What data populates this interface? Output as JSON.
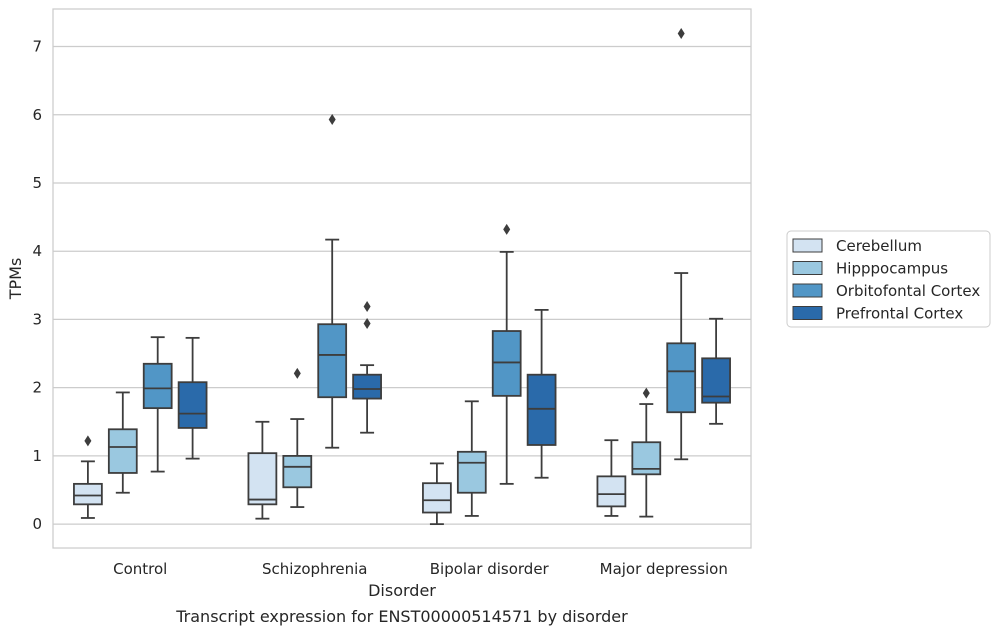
{
  "chart_data": {
    "type": "box",
    "title": "Transcript expression for ENST00000514571 by disorder",
    "xlabel": "Disorder",
    "ylabel": "TPMs",
    "ylim": [
      -0.35,
      7.55
    ],
    "yticks": [
      0,
      1,
      2,
      3,
      4,
      5,
      6,
      7
    ],
    "grid": "horizontal",
    "legend_position": "right",
    "categories": [
      "Control",
      "Schizophrenia",
      "Bipolar disorder",
      "Major depression"
    ],
    "series": [
      {
        "name": "Cerebellum",
        "color": "#d3e3f2",
        "boxes": [
          {
            "whislo": 0.09,
            "q1": 0.29,
            "med": 0.42,
            "q3": 0.59,
            "whishi": 0.92,
            "fliers": [
              1.22
            ]
          },
          {
            "whislo": 0.08,
            "q1": 0.29,
            "med": 0.36,
            "q3": 1.04,
            "whishi": 1.5,
            "fliers": []
          },
          {
            "whislo": 0.0,
            "q1": 0.17,
            "med": 0.35,
            "q3": 0.6,
            "whishi": 0.89,
            "fliers": []
          },
          {
            "whislo": 0.12,
            "q1": 0.26,
            "med": 0.44,
            "q3": 0.7,
            "whishi": 1.23,
            "fliers": []
          }
        ]
      },
      {
        "name": "Hipppocampus",
        "color": "#9ac8e0",
        "boxes": [
          {
            "whislo": 0.46,
            "q1": 0.75,
            "med": 1.13,
            "q3": 1.39,
            "whishi": 1.93,
            "fliers": []
          },
          {
            "whislo": 0.25,
            "q1": 0.54,
            "med": 0.84,
            "q3": 1.0,
            "whishi": 1.54,
            "fliers": [
              2.21
            ]
          },
          {
            "whislo": 0.12,
            "q1": 0.46,
            "med": 0.9,
            "q3": 1.06,
            "whishi": 1.8,
            "fliers": []
          },
          {
            "whislo": 0.11,
            "q1": 0.73,
            "med": 0.81,
            "q3": 1.2,
            "whishi": 1.76,
            "fliers": [
              1.92
            ]
          }
        ]
      },
      {
        "name": "Orbitofontal Cortex",
        "color": "#5196c6",
        "boxes": [
          {
            "whislo": 0.77,
            "q1": 1.7,
            "med": 1.99,
            "q3": 2.35,
            "whishi": 2.74,
            "fliers": []
          },
          {
            "whislo": 1.12,
            "q1": 1.86,
            "med": 2.48,
            "q3": 2.93,
            "whishi": 4.17,
            "fliers": [
              5.93
            ]
          },
          {
            "whislo": 0.59,
            "q1": 1.88,
            "med": 2.37,
            "q3": 2.83,
            "whishi": 3.99,
            "fliers": [
              4.32
            ]
          },
          {
            "whislo": 0.95,
            "q1": 1.64,
            "med": 2.24,
            "q3": 2.65,
            "whishi": 3.68,
            "fliers": [
              7.19
            ]
          }
        ]
      },
      {
        "name": "Prefrontal Cortex",
        "color": "#2a6aaa",
        "boxes": [
          {
            "whislo": 0.96,
            "q1": 1.41,
            "med": 1.62,
            "q3": 2.08,
            "whishi": 2.73,
            "fliers": []
          },
          {
            "whislo": 1.34,
            "q1": 1.84,
            "med": 1.98,
            "q3": 2.19,
            "whishi": 2.33,
            "fliers": [
              2.94,
              3.19
            ]
          },
          {
            "whislo": 0.68,
            "q1": 1.16,
            "med": 1.69,
            "q3": 2.19,
            "whishi": 3.14,
            "fliers": []
          },
          {
            "whislo": 1.47,
            "q1": 1.78,
            "med": 1.87,
            "q3": 2.43,
            "whishi": 3.01,
            "fliers": []
          }
        ]
      }
    ]
  }
}
